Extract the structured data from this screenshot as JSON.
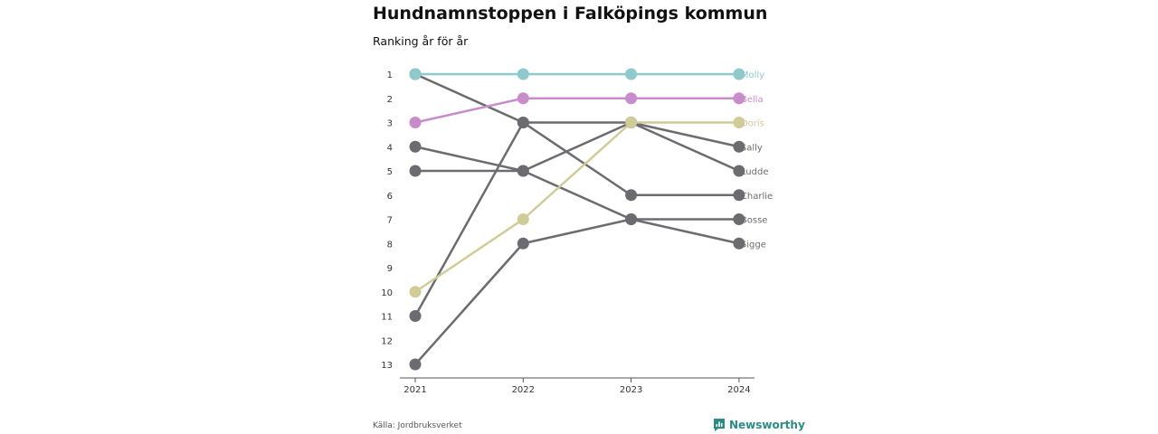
{
  "title": "Hundnamnstoppen i Falköpings kommun",
  "subtitle": "Ranking år för år",
  "source": "Källa: Jordbruksverket",
  "brand": "Newsworthy",
  "chart_data": {
    "type": "line",
    "chart_kind": "bump",
    "x": [
      "2021",
      "2022",
      "2023",
      "2024"
    ],
    "y_ticks": [
      1,
      2,
      3,
      4,
      5,
      6,
      7,
      8,
      9,
      10,
      11,
      12,
      13
    ],
    "ylim": [
      1,
      13
    ],
    "y_reversed": true,
    "grid": false,
    "labels_at": "right-end",
    "series": [
      {
        "name": "Molly",
        "values": [
          1,
          1,
          1,
          1
        ],
        "color": "#8ec9cc"
      },
      {
        "name": "Bella",
        "values": [
          3,
          2,
          2,
          2
        ],
        "color": "#c98ccb"
      },
      {
        "name": "Doris",
        "values": [
          10,
          7,
          3,
          3
        ],
        "color": "#cfcc97"
      },
      {
        "name": "Sally",
        "values": [
          11,
          3,
          3,
          4
        ],
        "color": "#6b6b70"
      },
      {
        "name": "Ludde",
        "values": [
          4,
          5,
          3,
          5
        ],
        "color": "#6b6b70"
      },
      {
        "name": "Charlie",
        "values": [
          1,
          3,
          6,
          6
        ],
        "color": "#6b6b70"
      },
      {
        "name": "Bosse",
        "values": [
          5,
          5,
          7,
          7
        ],
        "color": "#6b6b70"
      },
      {
        "name": "Sigge",
        "values": [
          13,
          8,
          7,
          8
        ],
        "color": "#6b6b70"
      }
    ]
  }
}
